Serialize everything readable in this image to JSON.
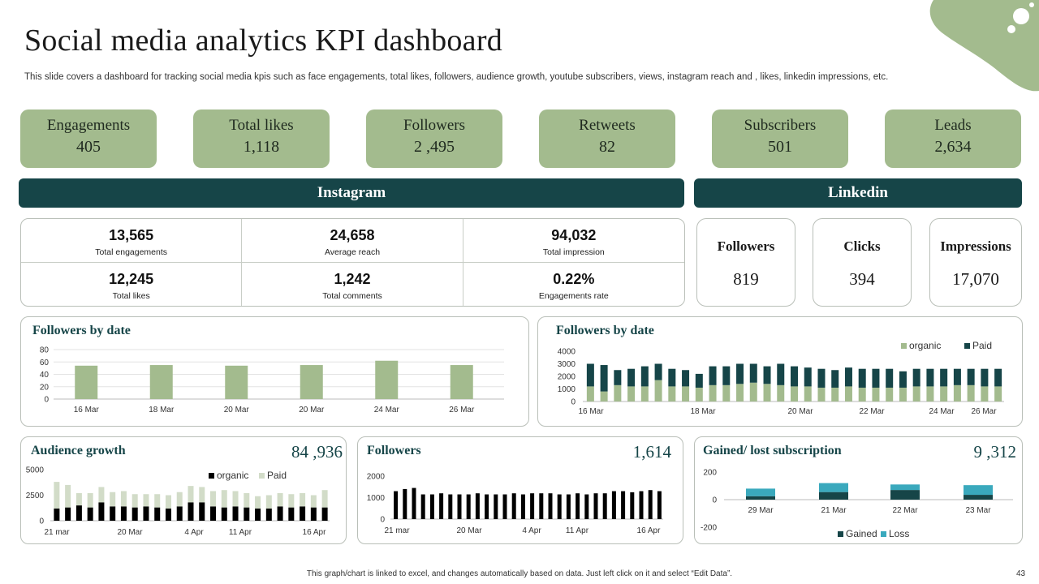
{
  "page": {
    "title": "Social media analytics KPI dashboard",
    "subtitle": "This slide covers a dashboard for tracking social media kpis such as face engagements, total likes, followers, audience growth, youtube subscribers, views, instagram reach and , likes, linkedin impressions, etc.",
    "footer": "This graph/chart is linked to excel, and changes automatically based on data. Just left click on it and select “Edit Data”.",
    "page_number": "43"
  },
  "colors": {
    "kpi_bg": "#a3bb8e",
    "dark_teal": "#164548",
    "bar_green": "#a3bb8e",
    "paid_dark": "#164548",
    "light_green": "#d2dcc8",
    "gained": "#164548",
    "loss": "#3aa9bd"
  },
  "kpis": [
    {
      "label": "Engagements",
      "value": "405"
    },
    {
      "label": "Total likes",
      "value": "1,118"
    },
    {
      "label": "Followers",
      "value": "2 ,495"
    },
    {
      "label": "Retweets",
      "value": "82"
    },
    {
      "label": "Subscribers",
      "value": "501"
    },
    {
      "label": "Leads",
      "value": "2,634"
    }
  ],
  "instagram": {
    "header": "Instagram",
    "cells": [
      {
        "value": "13,565",
        "label": "Total engagements"
      },
      {
        "value": "24,658",
        "label": "Average reach"
      },
      {
        "value": "94,032",
        "label": "Total impression"
      },
      {
        "value": "12,245",
        "label": "Total likes"
      },
      {
        "value": "1,242",
        "label": "Total comments"
      },
      {
        "value": "0.22%",
        "label": "Engagements rate"
      }
    ]
  },
  "linkedin": {
    "header": "Linkedin",
    "cards": [
      {
        "label": "Followers",
        "value": "819"
      },
      {
        "label": "Clicks",
        "value": "394"
      },
      {
        "label": "Impressions",
        "value": "17,070"
      }
    ]
  },
  "panels": {
    "followers_date_1": {
      "title": "Followers by date"
    },
    "followers_date_2": {
      "title": "Followers by date"
    },
    "audience_growth": {
      "title": "Audience growth",
      "value": "84 ,936"
    },
    "followers": {
      "title": "Followers",
      "value": "1,614"
    },
    "gained_lost": {
      "title": "Gained/ lost subscription",
      "value": "9 ,312"
    }
  },
  "chart_data": [
    {
      "id": "fbd1",
      "type": "bar",
      "title": "Followers by date",
      "categories": [
        "16 Mar",
        "18 Mar",
        "20 Mar",
        "20 Mar",
        "24 Mar",
        "26 Mar"
      ],
      "values": [
        54,
        55,
        54,
        55,
        62,
        55
      ],
      "yticks": [
        "0",
        "20",
        "40",
        "60",
        "80"
      ],
      "ylim": [
        0,
        80
      ],
      "grid": true
    },
    {
      "id": "fbd2",
      "type": "bar",
      "stacked": true,
      "title": "Followers by date",
      "legend": [
        "organic",
        "Paid"
      ],
      "x_tick_labels": [
        "16 Mar",
        "18 Mar",
        "20 Mar",
        "22 Mar",
        "24 Mar",
        "26 Mar"
      ],
      "yticks": [
        "0",
        "1000",
        "2000",
        "3000",
        "4000"
      ],
      "ylim": [
        0,
        4000
      ],
      "series": [
        {
          "name": "organic",
          "values": [
            1200,
            800,
            1300,
            1200,
            1200,
            1700,
            1200,
            1200,
            1100,
            1300,
            1300,
            1400,
            1500,
            1400,
            1300,
            1200,
            1200,
            1100,
            1100,
            1200,
            1100,
            1100,
            1100,
            1100,
            1200,
            1200,
            1200,
            1300,
            1300,
            1200,
            1200
          ]
        },
        {
          "name": "Paid",
          "values": [
            1800,
            2100,
            1200,
            1400,
            1600,
            1300,
            1400,
            1300,
            1100,
            1500,
            1500,
            1600,
            1500,
            1400,
            1700,
            1600,
            1500,
            1500,
            1400,
            1500,
            1500,
            1500,
            1500,
            1300,
            1400,
            1400,
            1400,
            1300,
            1300,
            1400,
            1400
          ]
        }
      ]
    },
    {
      "id": "ag",
      "type": "bar",
      "stacked": true,
      "title": "Audience growth",
      "legend": [
        "organic",
        "Paid"
      ],
      "x_tick_labels": [
        "21 mar",
        "20 Mar",
        "4 Apr",
        "11 Apr",
        "16 Apr"
      ],
      "yticks": [
        "0",
        "2500",
        "5000"
      ],
      "ylim": [
        0,
        5000
      ],
      "series": [
        {
          "name": "organic",
          "values": [
            1200,
            1300,
            1500,
            1300,
            1800,
            1400,
            1400,
            1300,
            1400,
            1300,
            1200,
            1400,
            1800,
            1800,
            1400,
            1300,
            1400,
            1300,
            1200,
            1200,
            1400,
            1300,
            1400,
            1300,
            1300
          ]
        },
        {
          "name": "Paid",
          "values": [
            2600,
            2200,
            1200,
            1400,
            1500,
            1400,
            1500,
            1300,
            1200,
            1300,
            1300,
            1400,
            1600,
            1500,
            1500,
            1700,
            1500,
            1400,
            1200,
            1300,
            1300,
            1300,
            1300,
            1200,
            1700
          ]
        }
      ]
    },
    {
      "id": "fol",
      "type": "bar",
      "title": "Followers",
      "x_tick_labels": [
        "21 mar",
        "20 Mar",
        "4 Apr",
        "11 Apr",
        "16 Apr"
      ],
      "yticks": [
        "0",
        "1000",
        "2000"
      ],
      "ylim": [
        0,
        2000
      ],
      "values": [
        1300,
        1400,
        1450,
        1150,
        1150,
        1200,
        1150,
        1150,
        1150,
        1200,
        1150,
        1150,
        1150,
        1200,
        1150,
        1200,
        1200,
        1200,
        1150,
        1150,
        1200,
        1150,
        1200,
        1200,
        1300,
        1300,
        1250,
        1300,
        1350,
        1300
      ]
    },
    {
      "id": "gl",
      "type": "bar",
      "stacked": true,
      "title": "Gained/ lost subscription",
      "legend": [
        "Gained",
        "Loss"
      ],
      "categories": [
        "29 Mar",
        "21 Mar",
        "22 Mar",
        "23 Mar"
      ],
      "yticks": [
        "-200",
        "0",
        "200"
      ],
      "ylim": [
        -200,
        200
      ],
      "series": [
        {
          "name": "Gained",
          "values": [
            25,
            55,
            70,
            35
          ]
        },
        {
          "name": "Loss",
          "values": [
            55,
            65,
            40,
            70
          ]
        }
      ]
    }
  ]
}
